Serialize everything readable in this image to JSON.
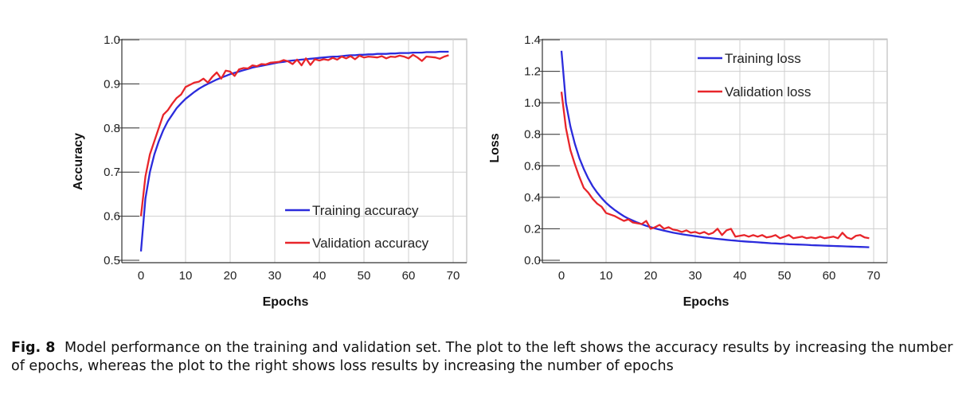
{
  "chart_data": [
    {
      "type": "line",
      "title": "",
      "xlabel": "Epochs",
      "ylabel": "Accuracy",
      "xlim": [
        0,
        70
      ],
      "ylim": [
        0.5,
        1.0
      ],
      "xticks": [
        "0",
        "10",
        "20",
        "30",
        "40",
        "50",
        "60",
        "70"
      ],
      "yticks": [
        "0.5",
        "0.6",
        "0.7",
        "0.8",
        "0.9",
        "1.0"
      ],
      "grid": true,
      "legend_position": "lower-right",
      "series": [
        {
          "name": "Training accuracy",
          "color": "#2b2bdc",
          "x": [
            0,
            1,
            2,
            3,
            4,
            5,
            6,
            7,
            8,
            9,
            10,
            11,
            12,
            13,
            14,
            15,
            16,
            17,
            18,
            19,
            20,
            21,
            22,
            23,
            24,
            25,
            26,
            27,
            28,
            29,
            30,
            31,
            32,
            33,
            34,
            35,
            36,
            37,
            38,
            39,
            40,
            41,
            42,
            43,
            44,
            45,
            46,
            47,
            48,
            49,
            50,
            51,
            52,
            53,
            54,
            55,
            56,
            57,
            58,
            59,
            60,
            61,
            62,
            63,
            64,
            65,
            66,
            67,
            68,
            69
          ],
          "y": [
            0.52,
            0.64,
            0.7,
            0.74,
            0.77,
            0.795,
            0.815,
            0.83,
            0.845,
            0.856,
            0.866,
            0.874,
            0.882,
            0.889,
            0.895,
            0.9,
            0.905,
            0.91,
            0.914,
            0.918,
            0.922,
            0.925,
            0.928,
            0.931,
            0.934,
            0.937,
            0.939,
            0.941,
            0.943,
            0.945,
            0.947,
            0.949,
            0.95,
            0.952,
            0.953,
            0.954,
            0.955,
            0.956,
            0.957,
            0.958,
            0.959,
            0.96,
            0.961,
            0.962,
            0.962,
            0.963,
            0.964,
            0.965,
            0.965,
            0.966,
            0.966,
            0.967,
            0.967,
            0.968,
            0.968,
            0.968,
            0.969,
            0.969,
            0.97,
            0.97,
            0.97,
            0.971,
            0.971,
            0.971,
            0.972,
            0.972,
            0.972,
            0.973,
            0.973,
            0.973
          ]
        },
        {
          "name": "Validation accuracy",
          "color": "#e8252a",
          "x": [
            0,
            1,
            2,
            3,
            4,
            5,
            6,
            7,
            8,
            9,
            10,
            11,
            12,
            13,
            14,
            15,
            16,
            17,
            18,
            19,
            20,
            21,
            22,
            23,
            24,
            25,
            26,
            27,
            28,
            29,
            30,
            31,
            32,
            33,
            34,
            35,
            36,
            37,
            38,
            39,
            40,
            41,
            42,
            43,
            44,
            45,
            46,
            47,
            48,
            49,
            50,
            51,
            52,
            53,
            54,
            55,
            56,
            57,
            58,
            59,
            60,
            61,
            62,
            63,
            64,
            65,
            66,
            67,
            68,
            69
          ],
          "y": [
            0.6,
            0.69,
            0.74,
            0.77,
            0.8,
            0.83,
            0.84,
            0.855,
            0.868,
            0.876,
            0.893,
            0.898,
            0.903,
            0.905,
            0.912,
            0.903,
            0.916,
            0.926,
            0.912,
            0.93,
            0.928,
            0.918,
            0.933,
            0.936,
            0.935,
            0.942,
            0.94,
            0.945,
            0.944,
            0.948,
            0.949,
            0.95,
            0.954,
            0.951,
            0.945,
            0.955,
            0.942,
            0.958,
            0.943,
            0.956,
            0.953,
            0.956,
            0.954,
            0.959,
            0.955,
            0.962,
            0.958,
            0.963,
            0.956,
            0.964,
            0.96,
            0.962,
            0.961,
            0.96,
            0.963,
            0.958,
            0.962,
            0.961,
            0.964,
            0.962,
            0.958,
            0.966,
            0.96,
            0.952,
            0.962,
            0.961,
            0.96,
            0.957,
            0.962,
            0.965
          ]
        }
      ]
    },
    {
      "type": "line",
      "title": "",
      "xlabel": "Epochs",
      "ylabel": "Loss",
      "xlim": [
        0,
        70
      ],
      "ylim": [
        0.0,
        1.4
      ],
      "xticks": [
        "0",
        "10",
        "20",
        "30",
        "40",
        "50",
        "60",
        "70"
      ],
      "yticks": [
        "0.0",
        "0.2",
        "0.4",
        "0.6",
        "0.8",
        "1.0",
        "1.2",
        "1.4"
      ],
      "grid": true,
      "legend_position": "top-right",
      "series": [
        {
          "name": "Training loss",
          "color": "#2b2bdc",
          "x": [
            0,
            1,
            2,
            3,
            4,
            5,
            6,
            7,
            8,
            9,
            10,
            11,
            12,
            13,
            14,
            15,
            16,
            17,
            18,
            19,
            20,
            21,
            22,
            23,
            24,
            25,
            26,
            27,
            28,
            29,
            30,
            31,
            32,
            33,
            34,
            35,
            36,
            37,
            38,
            39,
            40,
            41,
            42,
            43,
            44,
            45,
            46,
            47,
            48,
            49,
            50,
            51,
            52,
            53,
            54,
            55,
            56,
            57,
            58,
            59,
            60,
            61,
            62,
            63,
            64,
            65,
            66,
            67,
            68,
            69
          ],
          "y": [
            1.33,
            1.0,
            0.85,
            0.74,
            0.65,
            0.58,
            0.52,
            0.47,
            0.43,
            0.395,
            0.365,
            0.34,
            0.318,
            0.298,
            0.28,
            0.265,
            0.252,
            0.24,
            0.229,
            0.219,
            0.21,
            0.202,
            0.195,
            0.188,
            0.182,
            0.176,
            0.171,
            0.166,
            0.161,
            0.157,
            0.153,
            0.149,
            0.145,
            0.142,
            0.139,
            0.136,
            0.133,
            0.13,
            0.127,
            0.125,
            0.122,
            0.12,
            0.118,
            0.116,
            0.114,
            0.112,
            0.11,
            0.108,
            0.107,
            0.105,
            0.104,
            0.102,
            0.101,
            0.1,
            0.099,
            0.098,
            0.096,
            0.095,
            0.094,
            0.093,
            0.092,
            0.091,
            0.09,
            0.089,
            0.088,
            0.087,
            0.086,
            0.085,
            0.084,
            0.083
          ]
        },
        {
          "name": "Validation loss",
          "color": "#e8252a",
          "x": [
            0,
            1,
            2,
            3,
            4,
            5,
            6,
            7,
            8,
            9,
            10,
            11,
            12,
            13,
            14,
            15,
            16,
            17,
            18,
            19,
            20,
            21,
            22,
            23,
            24,
            25,
            26,
            27,
            28,
            29,
            30,
            31,
            32,
            33,
            34,
            35,
            36,
            37,
            38,
            39,
            40,
            41,
            42,
            43,
            44,
            45,
            46,
            47,
            48,
            49,
            50,
            51,
            52,
            53,
            54,
            55,
            56,
            57,
            58,
            59,
            60,
            61,
            62,
            63,
            64,
            65,
            66,
            67,
            68,
            69
          ],
          "y": [
            1.07,
            0.84,
            0.7,
            0.61,
            0.53,
            0.46,
            0.43,
            0.39,
            0.36,
            0.34,
            0.3,
            0.29,
            0.28,
            0.265,
            0.25,
            0.26,
            0.24,
            0.235,
            0.23,
            0.25,
            0.2,
            0.21,
            0.225,
            0.2,
            0.21,
            0.195,
            0.19,
            0.18,
            0.19,
            0.175,
            0.18,
            0.17,
            0.18,
            0.165,
            0.175,
            0.2,
            0.16,
            0.19,
            0.2,
            0.15,
            0.155,
            0.16,
            0.15,
            0.16,
            0.15,
            0.16,
            0.145,
            0.15,
            0.16,
            0.14,
            0.15,
            0.16,
            0.14,
            0.145,
            0.15,
            0.14,
            0.145,
            0.14,
            0.15,
            0.14,
            0.145,
            0.15,
            0.14,
            0.175,
            0.145,
            0.135,
            0.155,
            0.16,
            0.145,
            0.14
          ]
        }
      ]
    }
  ],
  "caption": {
    "label": "Fig. 8",
    "text": "Model performance on the training and validation set. The plot to the left shows the accuracy results by increasing the number of epochs, whereas the plot to the right shows loss results by increasing the number of epochs"
  }
}
